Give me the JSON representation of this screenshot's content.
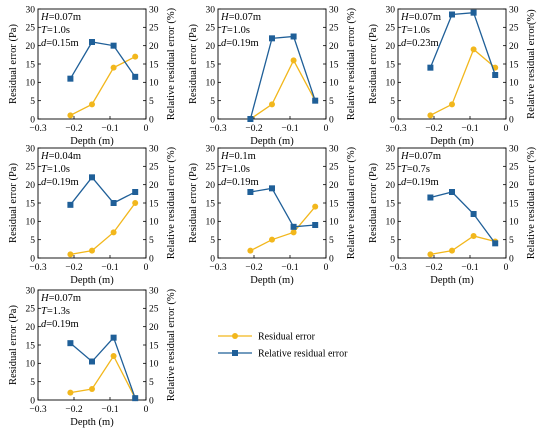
{
  "colors": {
    "residual": "#f2b71c",
    "relative": "#1f5f98",
    "axis": "#000000"
  },
  "legend": [
    {
      "label": "Residual error",
      "series": "residual",
      "marker": "circle"
    },
    {
      "label": "Relative residual error",
      "series": "relative",
      "marker": "square"
    }
  ],
  "chart_data": [
    {
      "type": "line",
      "params": [
        "H=0.07m",
        "T=1.0s",
        "d=0.15m"
      ],
      "xlabel": "Depth (m)",
      "ylabel_left": "Residual error (Pa)",
      "ylabel_right": "Relative residual error (%)",
      "xlim": [
        -0.3,
        0
      ],
      "xticks": [
        "−0.3",
        "−0.2",
        "−0.1",
        "0"
      ],
      "ylim_left": [
        0,
        30
      ],
      "ylim_right": [
        0,
        30
      ],
      "yticks": [
        "0",
        "5",
        "10",
        "15",
        "20",
        "25",
        "30"
      ],
      "x": [
        -0.21,
        -0.15,
        -0.09,
        -0.03
      ],
      "series": [
        {
          "name": "Residual error",
          "axis": "left",
          "values": [
            1,
            4,
            14,
            17
          ]
        },
        {
          "name": "Relative residual error",
          "axis": "right",
          "values": [
            11,
            21,
            20,
            11.5
          ]
        }
      ]
    },
    {
      "type": "line",
      "params": [
        "H=0.07m",
        "T=1.0s",
        "d=0.19m"
      ],
      "xlabel": "Depth (m)",
      "ylabel_left": "Residual error (Pa)",
      "ylabel_right": "Relative residual error (%)",
      "xlim": [
        -0.3,
        0
      ],
      "xticks": [
        "−0.3",
        "−0.2",
        "−0.1",
        "0"
      ],
      "ylim_left": [
        0,
        30
      ],
      "ylim_right": [
        0,
        30
      ],
      "yticks": [
        "0",
        "5",
        "10",
        "15",
        "20",
        "25",
        "30"
      ],
      "x": [
        -0.21,
        -0.15,
        -0.09,
        -0.03
      ],
      "series": [
        {
          "name": "Residual error",
          "axis": "left",
          "values": [
            0,
            4,
            16,
            5
          ]
        },
        {
          "name": "Relative residual error",
          "axis": "right",
          "values": [
            0,
            22,
            22.5,
            5
          ]
        }
      ]
    },
    {
      "type": "line",
      "params": [
        "H=0.07m",
        "T=1.0s",
        "d=0.23m"
      ],
      "xlabel": "Depth (m)",
      "ylabel_left": "Residual error (Pa)",
      "ylabel_right": "Relative residual error(%)",
      "xlim": [
        -0.3,
        0
      ],
      "xticks": [
        "−0.3",
        "−0.2",
        "−0.1",
        "0"
      ],
      "ylim_left": [
        0,
        30
      ],
      "ylim_right": [
        0,
        30
      ],
      "yticks": [
        "0",
        "5",
        "10",
        "15",
        "20",
        "25",
        "30"
      ],
      "x": [
        -0.21,
        -0.15,
        -0.09,
        -0.03
      ],
      "series": [
        {
          "name": "Residual error",
          "axis": "left",
          "values": [
            1,
            4,
            19,
            14
          ]
        },
        {
          "name": "Relative residual error",
          "axis": "right",
          "values": [
            14,
            28.5,
            29,
            12
          ]
        }
      ]
    },
    {
      "type": "line",
      "params": [
        "H=0.04m",
        "T=1.0s",
        "d=0.19m"
      ],
      "xlabel": "Depth (m)",
      "ylabel_left": "Residual error (Pa)",
      "ylabel_right": "Relative residual error (%)",
      "xlim": [
        -0.3,
        0
      ],
      "xticks": [
        "−0.3",
        "−0.2",
        "−0.1",
        "0"
      ],
      "ylim_left": [
        0,
        30
      ],
      "ylim_right": [
        0,
        30
      ],
      "yticks": [
        "0",
        "5",
        "10",
        "15",
        "20",
        "25",
        "30"
      ],
      "x": [
        -0.21,
        -0.15,
        -0.09,
        -0.03
      ],
      "series": [
        {
          "name": "Residual error",
          "axis": "left",
          "values": [
            1,
            2,
            7,
            15
          ]
        },
        {
          "name": "Relative residual error",
          "axis": "right",
          "values": [
            14.5,
            22,
            15,
            18
          ]
        }
      ]
    },
    {
      "type": "line",
      "params": [
        "H=0.1m",
        "T=1.0s",
        "d=0.19m"
      ],
      "xlabel": "Depth (m)",
      "ylabel_left": "Residual error (Pa)",
      "ylabel_right": "Relative residual error (%)",
      "xlim": [
        -0.3,
        0
      ],
      "xticks": [
        "−0.3",
        "−0.2",
        "−0.1",
        "0"
      ],
      "ylim_left": [
        0,
        30
      ],
      "ylim_right": [
        0,
        30
      ],
      "yticks": [
        "0",
        "5",
        "10",
        "15",
        "20",
        "25",
        "30"
      ],
      "x": [
        -0.21,
        -0.15,
        -0.09,
        -0.03
      ],
      "series": [
        {
          "name": "Residual error",
          "axis": "left",
          "values": [
            2,
            5,
            7,
            14
          ]
        },
        {
          "name": "Relative residual error",
          "axis": "right",
          "values": [
            18,
            19,
            8.5,
            9
          ]
        }
      ]
    },
    {
      "type": "line",
      "params": [
        "H=0.07m",
        "T=0.7s",
        "d=0.19m"
      ],
      "xlabel": "Depth (m)",
      "ylabel_left": "Residual error (Pa)",
      "ylabel_right": "Relative residual error (%)",
      "xlim": [
        -0.3,
        0
      ],
      "xticks": [
        "−0.3",
        "−0.2",
        "−0.1",
        "0"
      ],
      "ylim_left": [
        0,
        30
      ],
      "ylim_right": [
        0,
        30
      ],
      "yticks": [
        "0",
        "5",
        "10",
        "15",
        "20",
        "25",
        "30"
      ],
      "x": [
        -0.21,
        -0.15,
        -0.09,
        -0.03
      ],
      "series": [
        {
          "name": "Residual error",
          "axis": "left",
          "values": [
            1,
            2,
            6,
            4.5
          ]
        },
        {
          "name": "Relative residual error",
          "axis": "right",
          "values": [
            16.5,
            18,
            12,
            4
          ]
        }
      ]
    },
    {
      "type": "line",
      "params": [
        "H=0.07m",
        "T=1.3s",
        "d=0.19m"
      ],
      "xlabel": "Depth (m)",
      "ylabel_left": "Residual error (Pa)",
      "ylabel_right": "Relative residual error (%)",
      "xlim": [
        -0.3,
        0
      ],
      "xticks": [
        "−0.3",
        "−0.2",
        "−0.1",
        "0"
      ],
      "ylim_left": [
        0,
        30
      ],
      "ylim_right": [
        0,
        30
      ],
      "yticks": [
        "0",
        "5",
        "10",
        "15",
        "20",
        "25",
        "30"
      ],
      "x": [
        -0.21,
        -0.15,
        -0.09,
        -0.03
      ],
      "series": [
        {
          "name": "Residual error",
          "axis": "left",
          "values": [
            2,
            3,
            12,
            0.5
          ]
        },
        {
          "name": "Relative residual error",
          "axis": "right",
          "values": [
            15.5,
            10.5,
            17,
            0.5
          ]
        }
      ]
    }
  ]
}
